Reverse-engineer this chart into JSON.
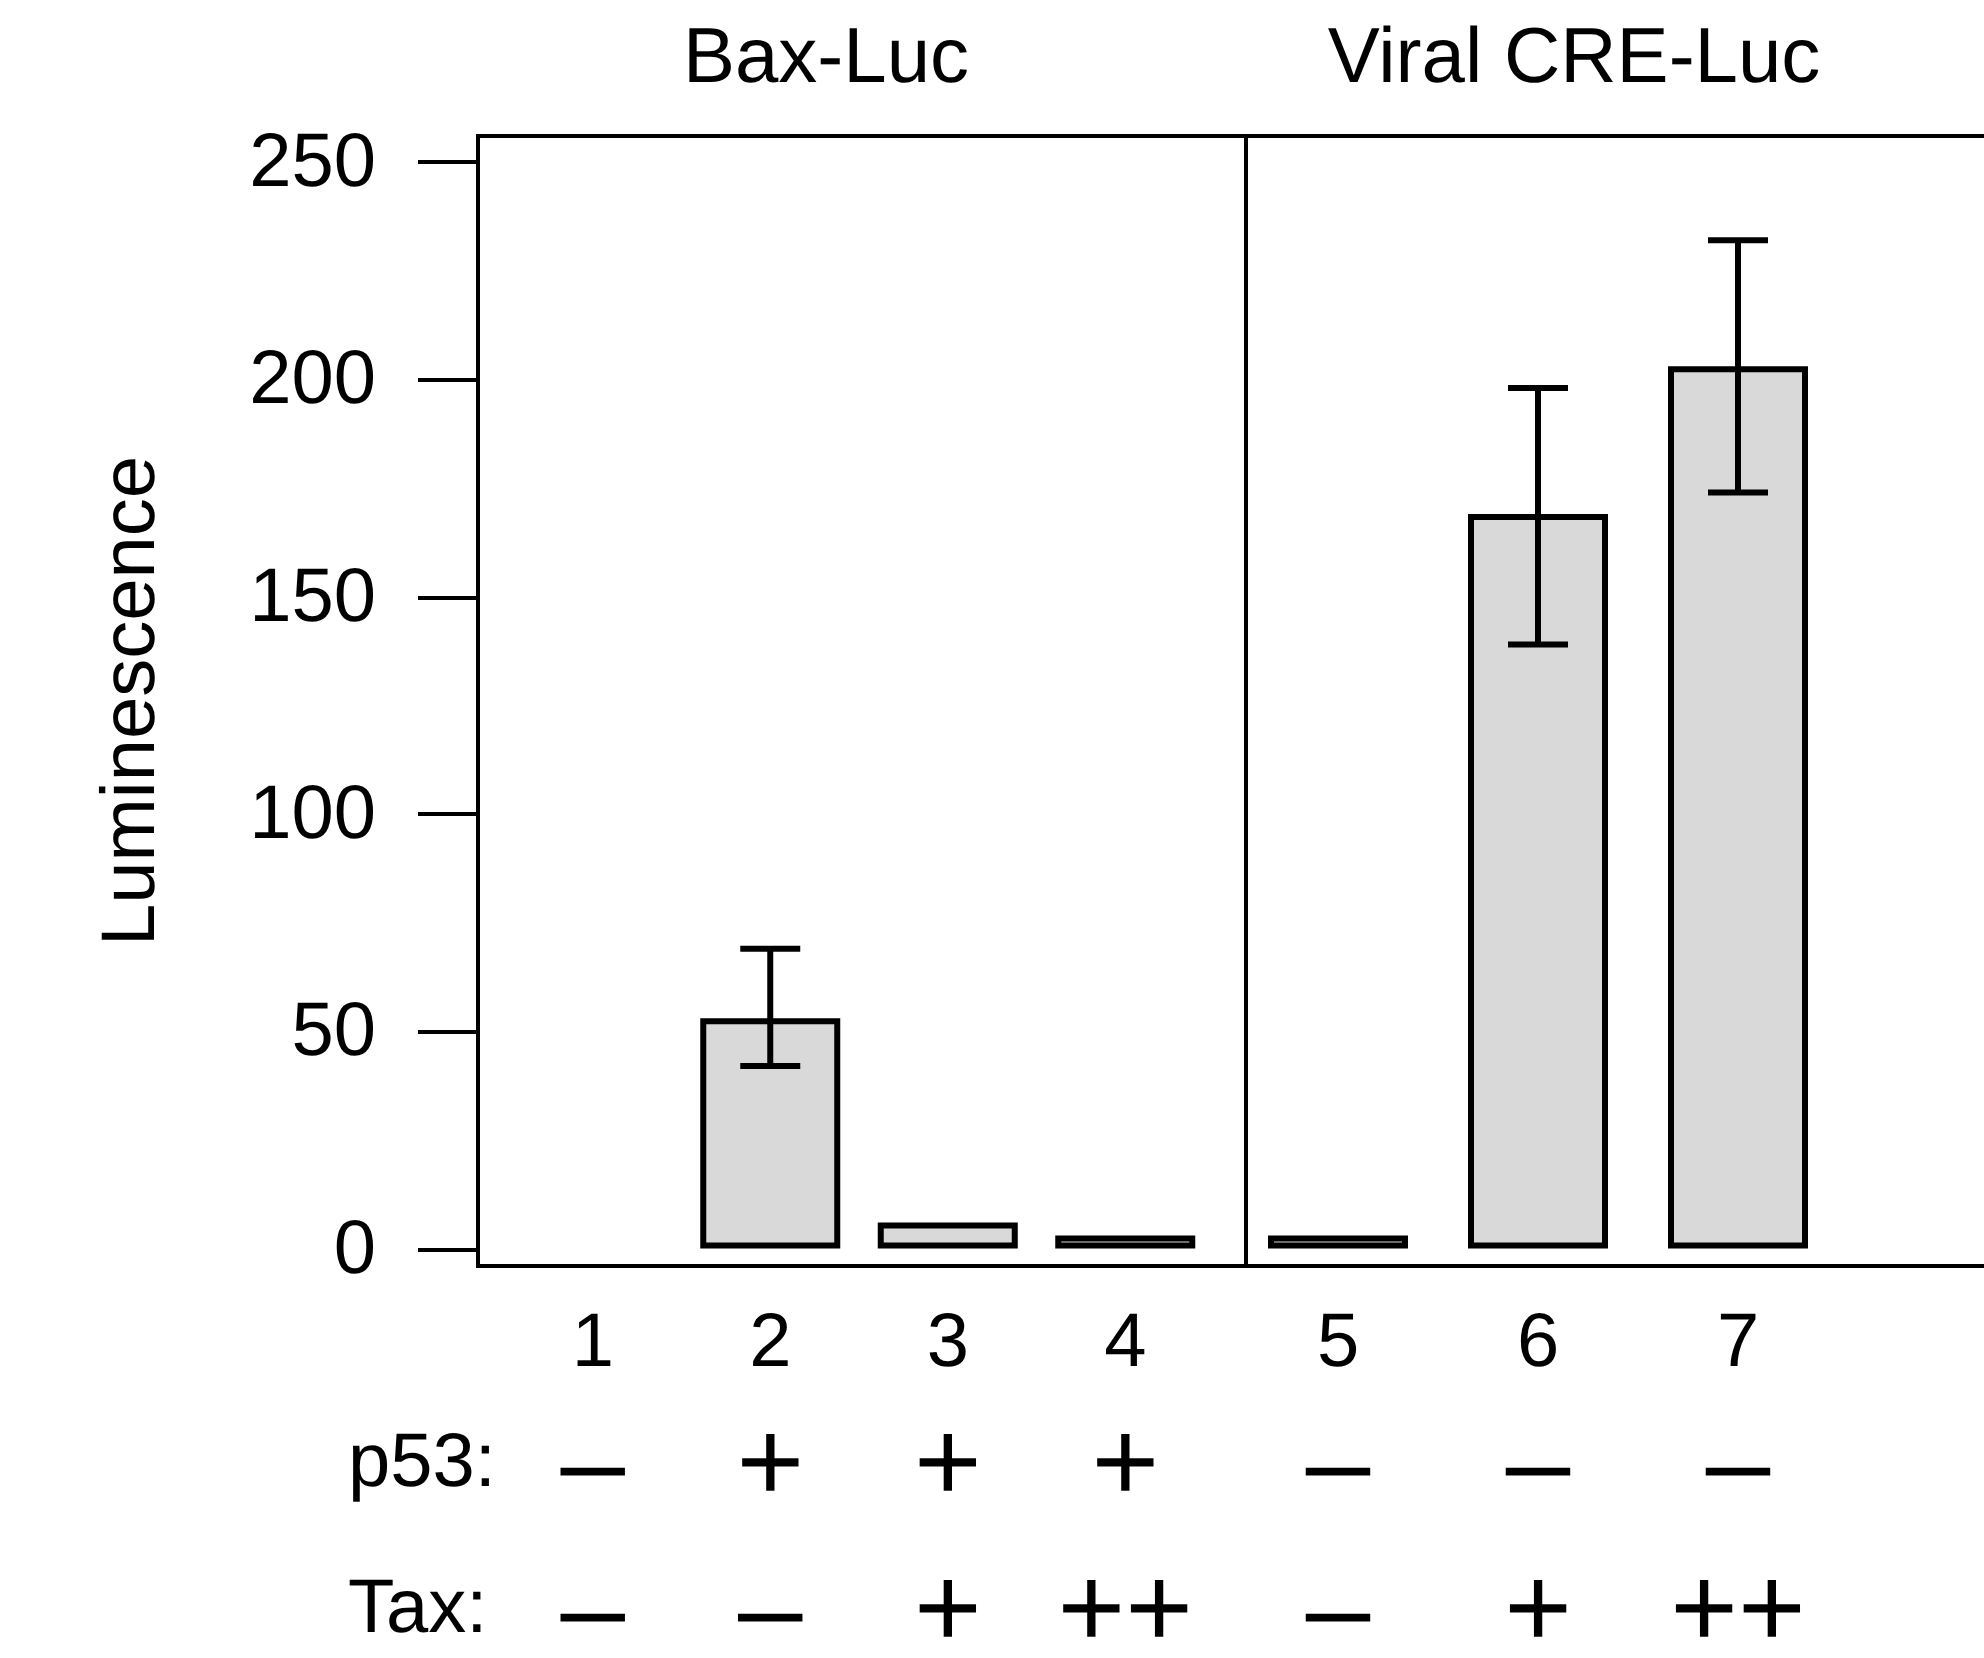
{
  "chart_data": [
    {
      "type": "bar",
      "title": "Bax-Luc",
      "ylabel": "Luminescence",
      "categories": [
        "1\n–\n–",
        "2\n+\n–",
        "3\n+\n+",
        "4\n+\n++"
      ],
      "values": [
        0,
        53,
        6,
        3
      ],
      "errors": [
        null,
        [
          42,
          69
        ],
        null,
        null
      ],
      "color": "#d9d9d9",
      "ylim": [
        -4,
        256
      ],
      "yticks": [
        0,
        50,
        100,
        150,
        200,
        250
      ],
      "grid": false,
      "annotations": [
        "p53:",
        "Tax:"
      ]
    },
    {
      "type": "bar",
      "title": "Viral CRE-Luc",
      "categories": [
        "5\n–\n–",
        "6\n–\n+",
        "7\n–\n++"
      ],
      "values": [
        3,
        169,
        203
      ],
      "errors": [
        null,
        [
          139,
          198
        ],
        [
          174,
          232
        ]
      ],
      "color": "#d9d9d9",
      "ylim": [
        -4,
        256
      ],
      "yticks": [
        0,
        50,
        100,
        150,
        200,
        250
      ],
      "grid": false,
      "tick_labels": "x"
    }
  ]
}
